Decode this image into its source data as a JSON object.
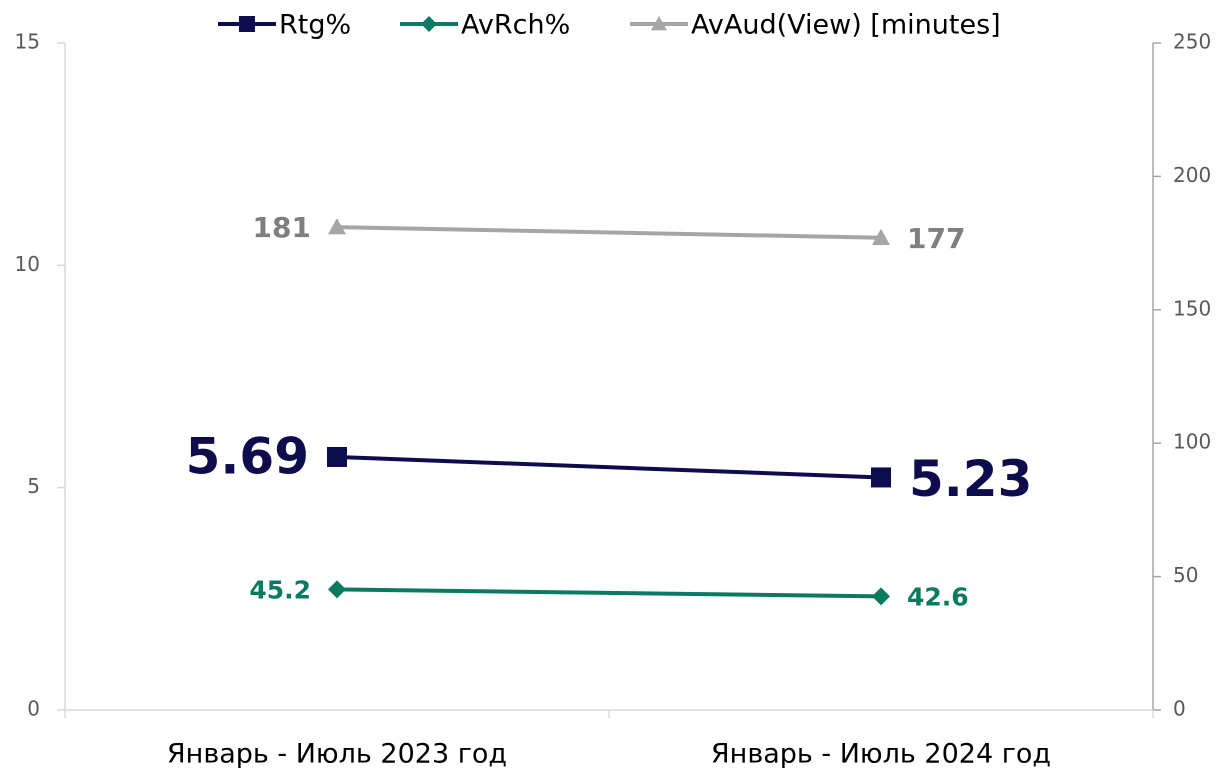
{
  "chart_data": {
    "type": "line",
    "categories": [
      "Январь - Июль 2023 год",
      "Январь - Июль 2024 год"
    ],
    "series": [
      {
        "name": "Rtg%",
        "color": "#0d0d4d",
        "marker": "square",
        "axis": "y",
        "values": [
          5.69,
          5.23
        ]
      },
      {
        "name": "AvRch%",
        "color": "#0b7a62",
        "marker": "diamond",
        "axis": "y2",
        "values": [
          45.2,
          42.6
        ]
      },
      {
        "name": "AvAud(View) [minutes]",
        "color": "#a6a6a6",
        "marker": "triangle",
        "axis": "y2",
        "values": [
          181,
          177
        ]
      }
    ],
    "ylim": [
      0,
      15
    ],
    "yticks": [
      0,
      5,
      10,
      15
    ],
    "y2lim": [
      0,
      250
    ],
    "y2ticks": [
      0,
      50,
      100,
      150,
      200,
      250
    ],
    "legend": "top",
    "grid": false
  }
}
